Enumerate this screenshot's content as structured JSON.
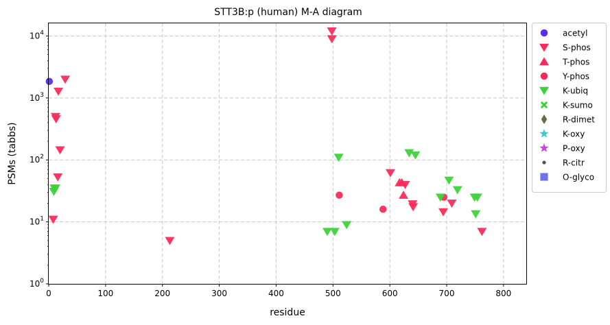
{
  "chart_data": {
    "type": "scatter",
    "title": "STT3B:p (human) M-A diagram",
    "xlabel": "residue",
    "ylabel": "PSMs (tabbs)",
    "xlim": [
      0,
      840
    ],
    "ylim": [
      1,
      16000
    ],
    "yscale": "log",
    "grid": true,
    "legend_position": "outside-right",
    "x_ticks": [
      "0",
      "100",
      "200",
      "300",
      "400",
      "500",
      "600",
      "700",
      "800"
    ],
    "y_ticks": [
      {
        "base": "10",
        "exp": "0"
      },
      {
        "base": "10",
        "exp": "1"
      },
      {
        "base": "10",
        "exp": "2"
      },
      {
        "base": "10",
        "exp": "3"
      },
      {
        "base": "10",
        "exp": "4"
      }
    ],
    "series": [
      {
        "name": "acetyl",
        "marker": "circle",
        "color": "#5b2cf6",
        "points": [
          [
            1,
            1850
          ]
        ]
      },
      {
        "name": "S-phos",
        "marker": "triangle-down",
        "color": "#f72c5c",
        "points": [
          [
            29,
            2000
          ],
          [
            17,
            1280
          ],
          [
            12,
            500
          ],
          [
            13,
            460
          ],
          [
            20,
            145
          ],
          [
            16,
            53
          ],
          [
            8,
            11
          ],
          [
            213,
            5
          ],
          [
            498,
            12000
          ],
          [
            498,
            9000
          ],
          [
            601,
            62
          ],
          [
            627,
            40
          ],
          [
            640,
            19.5
          ],
          [
            641,
            17.5
          ],
          [
            694,
            14.5
          ],
          [
            709,
            20
          ],
          [
            762,
            7
          ]
        ]
      },
      {
        "name": "T-phos",
        "marker": "triangle-up",
        "color": "#f72c5c",
        "points": [
          [
            617,
            43
          ],
          [
            621,
            43
          ],
          [
            624,
            27
          ]
        ]
      },
      {
        "name": "Y-phos",
        "marker": "circle",
        "color": "#f72c5c",
        "points": [
          [
            511,
            27
          ],
          [
            588,
            16
          ],
          [
            695,
            25
          ]
        ]
      },
      {
        "name": "K-ubiq",
        "marker": "triangle-down",
        "color": "#3fd23c",
        "points": [
          [
            10,
            35
          ],
          [
            12,
            35
          ],
          [
            9,
            31
          ],
          [
            510,
            110
          ],
          [
            490,
            7
          ],
          [
            503,
            7
          ],
          [
            524,
            9
          ],
          [
            634,
            130
          ],
          [
            645,
            120
          ],
          [
            689,
            25
          ],
          [
            704,
            47
          ],
          [
            719,
            33
          ],
          [
            749,
            25
          ],
          [
            754,
            25
          ],
          [
            751,
            13.5
          ]
        ]
      },
      {
        "name": "K-sumo",
        "marker": "x",
        "color": "#3fd23c",
        "points": []
      },
      {
        "name": "R-dimet",
        "marker": "diamond",
        "color": "#6b6b45",
        "points": []
      },
      {
        "name": "K-oxy",
        "marker": "star",
        "color": "#3fc9d4",
        "points": []
      },
      {
        "name": "P-oxy",
        "marker": "star",
        "color": "#c24bd6",
        "points": []
      },
      {
        "name": "R-citr",
        "marker": "dot",
        "color": "#555555",
        "points": []
      },
      {
        "name": "O-glyco",
        "marker": "square",
        "color": "#7070ee",
        "points": []
      }
    ]
  }
}
